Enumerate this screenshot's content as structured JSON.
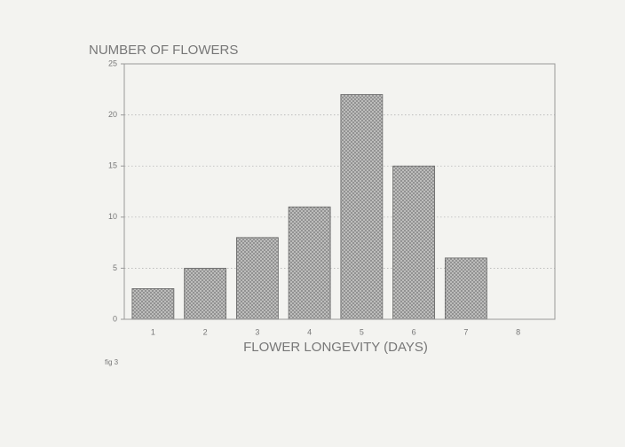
{
  "chart_data": {
    "type": "bar",
    "title": "NUMBER OF FLOWERS",
    "x_label": "FLOWER LONGEVITY (DAYS)",
    "annotation": "fig 3",
    "categories": [
      "1",
      "2",
      "3",
      "4",
      "5",
      "6",
      "7",
      "8"
    ],
    "values": [
      3,
      5,
      8,
      11,
      22,
      15,
      6,
      0
    ],
    "color": "#9a9a9a",
    "ylim": [
      0,
      25
    ],
    "yticks": [
      0,
      5,
      10,
      15,
      20,
      25
    ],
    "grid": true
  }
}
